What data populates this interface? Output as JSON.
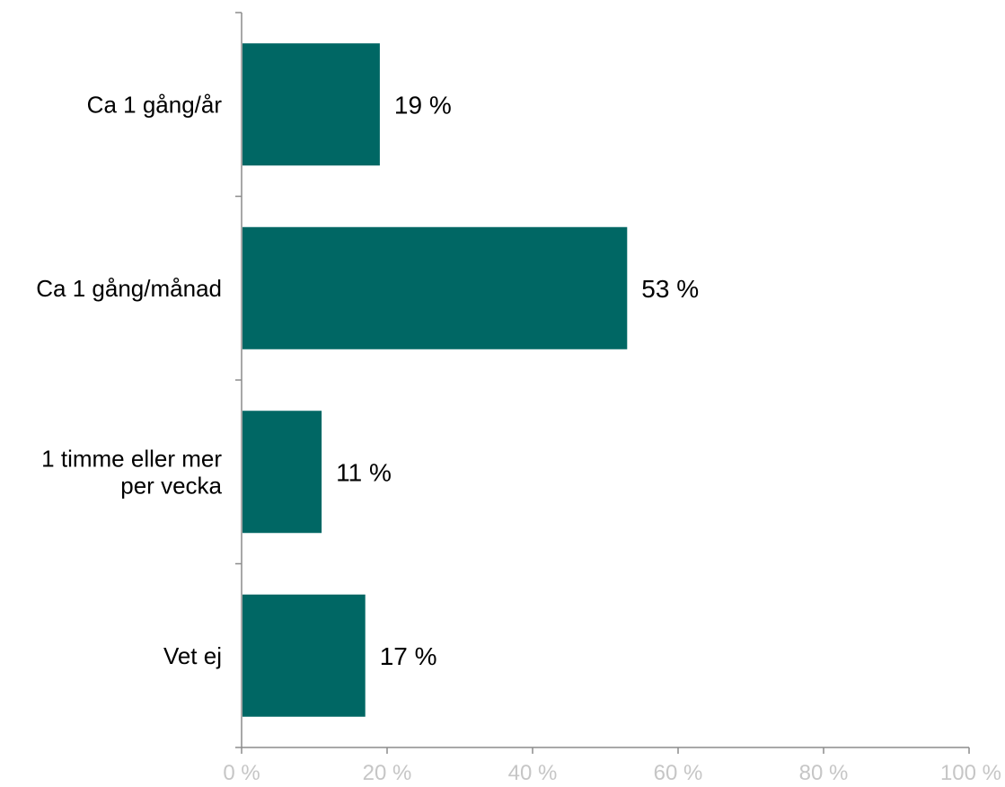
{
  "chart_data": {
    "type": "bar",
    "orientation": "horizontal",
    "categories": [
      [
        "Ca 1 gång/år"
      ],
      [
        "Ca 1 gång/månad"
      ],
      [
        "1 timme eller mer",
        "per vecka"
      ],
      [
        "Vet ej"
      ]
    ],
    "values": [
      19,
      53,
      11,
      17
    ],
    "value_labels": [
      "19 %",
      "53 %",
      "11 %",
      "17 %"
    ],
    "xlim": [
      0,
      100
    ],
    "xticks": [
      0,
      20,
      40,
      60,
      80,
      100
    ],
    "xtick_labels": [
      "0 %",
      "20 %",
      "40 %",
      "60 %",
      "80 %",
      "100 %"
    ],
    "bar_color": "#006764",
    "tick_label_color": "#c6c6c6",
    "grid": false,
    "legend": "none"
  }
}
